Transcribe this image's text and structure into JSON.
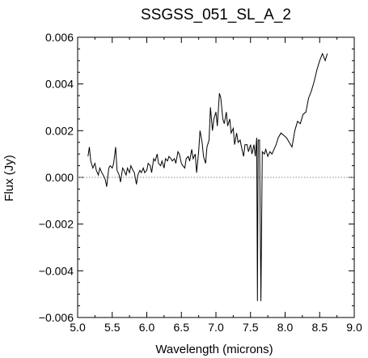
{
  "chart_data": {
    "type": "line",
    "title": "SSGSS_051_SL_A_2",
    "xlabel": "Wavelength (microns)",
    "ylabel": "Flux (Jy)",
    "xlim": [
      5.0,
      9.0
    ],
    "ylim": [
      -0.006,
      0.006
    ],
    "x_ticks": [
      5.0,
      5.5,
      6.0,
      6.5,
      7.0,
      7.5,
      8.0,
      8.5,
      9.0
    ],
    "x_tick_labels": [
      "5.0",
      "5.5",
      "6.0",
      "6.5",
      "7.0",
      "7.5",
      "8.0",
      "8.5",
      "9.0"
    ],
    "y_ticks": [
      -0.006,
      -0.004,
      -0.002,
      0.0,
      0.002,
      0.004,
      0.006
    ],
    "y_tick_labels": [
      "−0.006",
      "−0.004",
      "−0.002",
      "0.000",
      "0.002",
      "0.004",
      "0.006"
    ],
    "zero_line": true,
    "grid": false,
    "colors": {
      "line": "#000000",
      "zero_line": "#888888",
      "axes": "#000000"
    },
    "series": [
      {
        "x": [
          5.15,
          5.17,
          5.19,
          5.22,
          5.25,
          5.27,
          5.3,
          5.32,
          5.35,
          5.37,
          5.4,
          5.42,
          5.45,
          5.47,
          5.5,
          5.52,
          5.55,
          5.57,
          5.6,
          5.62,
          5.65,
          5.67,
          5.7,
          5.72,
          5.75,
          5.77,
          5.8,
          5.82,
          5.85,
          5.87,
          5.9,
          5.92,
          5.95,
          5.97,
          6.0,
          6.02,
          6.05,
          6.07,
          6.1,
          6.12,
          6.15,
          6.17,
          6.2,
          6.22,
          6.25,
          6.27,
          6.3,
          6.32,
          6.35,
          6.37,
          6.4,
          6.42,
          6.45,
          6.47,
          6.5,
          6.52,
          6.55,
          6.57,
          6.6,
          6.62,
          6.65,
          6.67,
          6.7,
          6.72,
          6.75,
          6.77,
          6.8,
          6.82,
          6.85,
          6.87,
          6.9,
          6.92,
          6.95,
          6.97,
          7.0,
          7.02,
          7.05,
          7.07,
          7.1,
          7.12,
          7.15,
          7.17,
          7.2,
          7.22,
          7.25,
          7.27,
          7.3,
          7.32,
          7.35,
          7.37,
          7.4,
          7.42,
          7.45,
          7.47,
          7.5,
          7.52,
          7.55,
          7.57,
          7.59,
          7.6,
          7.61,
          7.63,
          7.65,
          7.67,
          7.7,
          7.72,
          7.75,
          7.78,
          7.81,
          7.84,
          7.87,
          7.9,
          7.94,
          7.98,
          8.02,
          8.06,
          8.1,
          8.14,
          8.18,
          8.22,
          8.26,
          8.3,
          8.34,
          8.38,
          8.42,
          8.46,
          8.5,
          8.54,
          8.58,
          8.61
        ],
        "y": [
          0.0009,
          0.0013,
          0.0007,
          0.0004,
          0.0006,
          0.0003,
          0.0001,
          0.0004,
          0.0002,
          0.0001,
          -0.0001,
          -0.0004,
          0.0004,
          0.0005,
          0.0004,
          0.0006,
          0.0013,
          0.0003,
          0.0001,
          -0.0002,
          0.0004,
          0.0003,
          0.0001,
          0.0004,
          0.0002,
          0.0005,
          0.0003,
          0.0002,
          -0.0003,
          0.0001,
          0.0003,
          0.0002,
          0.0004,
          0.0002,
          0.0003,
          0.0006,
          0.0005,
          0.0002,
          0.0008,
          0.0007,
          0.001,
          0.0006,
          0.0005,
          0.0007,
          0.0004,
          0.0008,
          0.0007,
          0.0009,
          0.0008,
          0.0007,
          0.0008,
          0.0006,
          0.0011,
          0.001,
          0.0006,
          0.0005,
          0.0004,
          0.0008,
          0.0009,
          0.0007,
          0.0012,
          0.0008,
          0.001,
          0.0002,
          0.0011,
          0.002,
          0.0015,
          0.0009,
          0.0006,
          0.0013,
          0.0016,
          0.003,
          0.002,
          0.0025,
          0.0028,
          0.0022,
          0.0036,
          0.0034,
          0.0025,
          0.0023,
          0.0028,
          0.0022,
          0.0025,
          0.0019,
          0.0021,
          0.0014,
          0.0019,
          0.0015,
          0.0016,
          0.0013,
          0.0009,
          0.0014,
          0.0014,
          0.0011,
          0.0014,
          0.001,
          0.0014,
          0.0009,
          0.0017,
          -0.0053,
          0.0016,
          0.0016,
          -0.0053,
          0.0011,
          0.001,
          0.0012,
          0.0009,
          0.0011,
          0.001,
          0.0012,
          0.0014,
          0.0017,
          0.0019,
          0.0018,
          0.0017,
          0.0015,
          0.0013,
          0.002,
          0.0024,
          0.0023,
          0.0027,
          0.0028,
          0.0034,
          0.0037,
          0.0041,
          0.0046,
          0.005,
          0.0053,
          0.005,
          0.0053
        ]
      }
    ]
  }
}
